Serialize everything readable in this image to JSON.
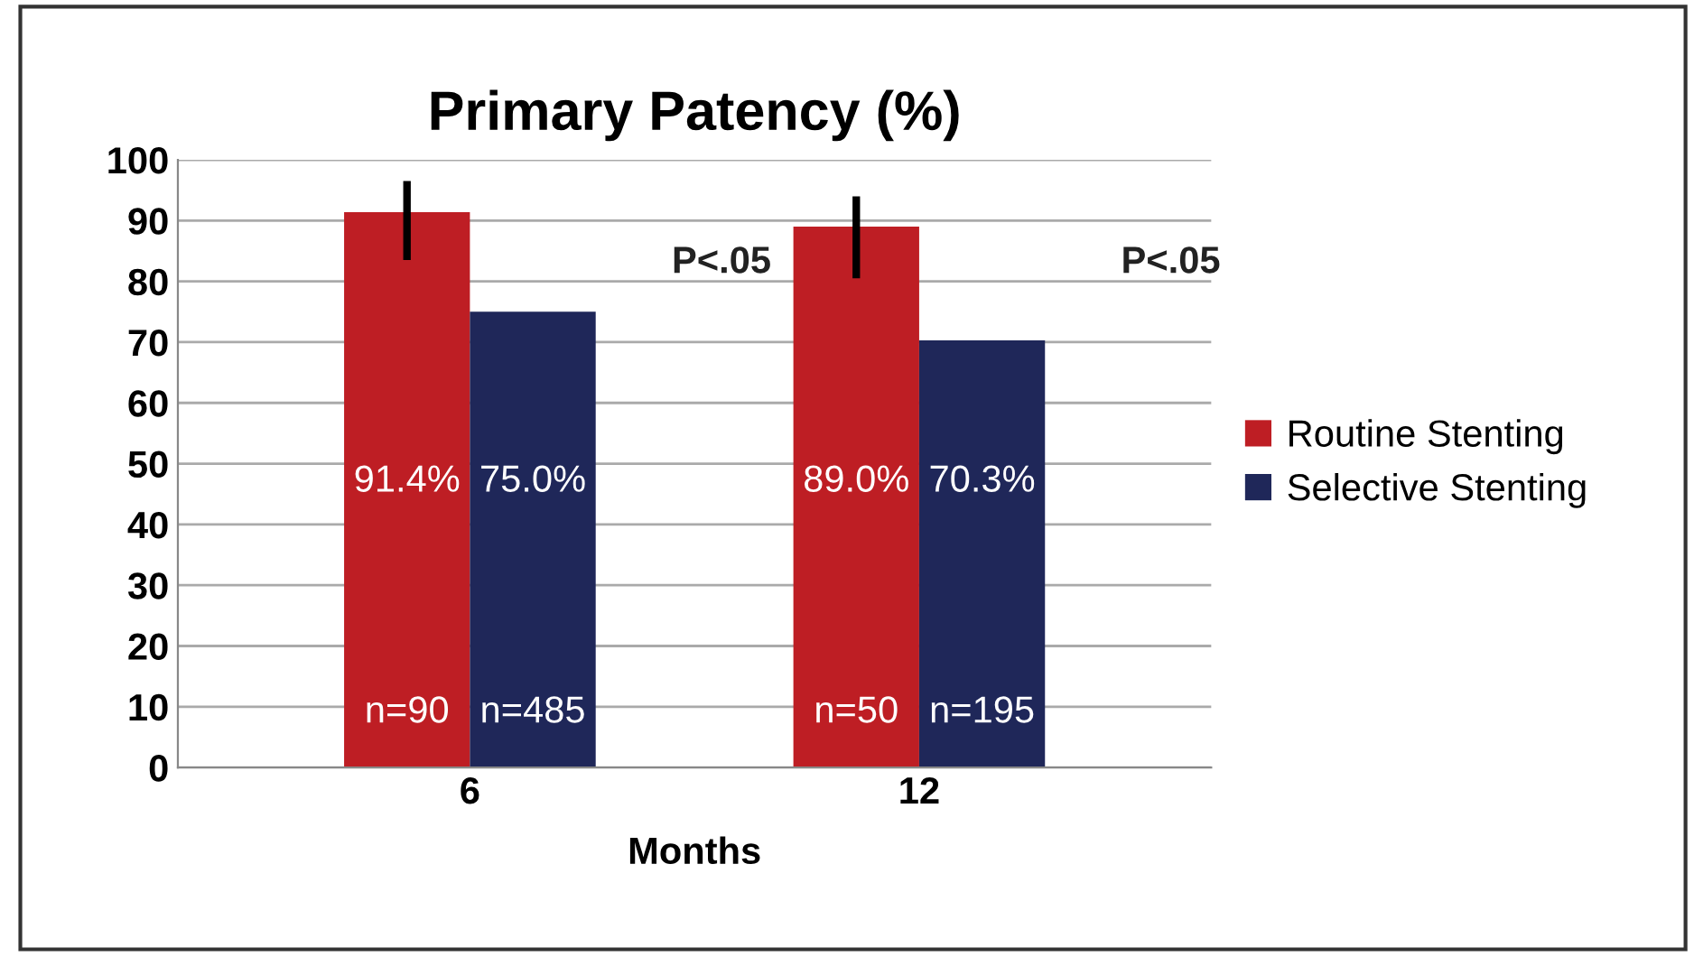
{
  "chart_data": {
    "type": "bar",
    "title": "Primary Patency (%)",
    "xlabel": "Months",
    "categories": [
      "6",
      "12"
    ],
    "series": [
      {
        "name": "Routine Stenting",
        "color": "#be1e24",
        "values": [
          91.4,
          89.0
        ],
        "errors": [
          [
            83.5,
            96.5
          ],
          [
            80.5,
            94
          ]
        ],
        "value_labels": [
          "91.4%",
          "89.0%"
        ]
      },
      {
        "name": "Selective Stenting",
        "color": "#1f2759",
        "values": [
          75.0,
          70.3
        ],
        "errors": [
          null,
          null
        ],
        "value_labels": [
          "75.0%",
          "70.3%"
        ]
      }
    ],
    "annotations": [
      "n=90",
      "n=485",
      "n=50",
      "n=195",
      "P<.05",
      "P<.05"
    ],
    "ylim": [
      0,
      100
    ],
    "yticks": [
      0,
      10,
      20,
      30,
      40,
      50,
      60,
      70,
      80,
      90,
      100
    ],
    "grid": "y",
    "legend": "right"
  }
}
